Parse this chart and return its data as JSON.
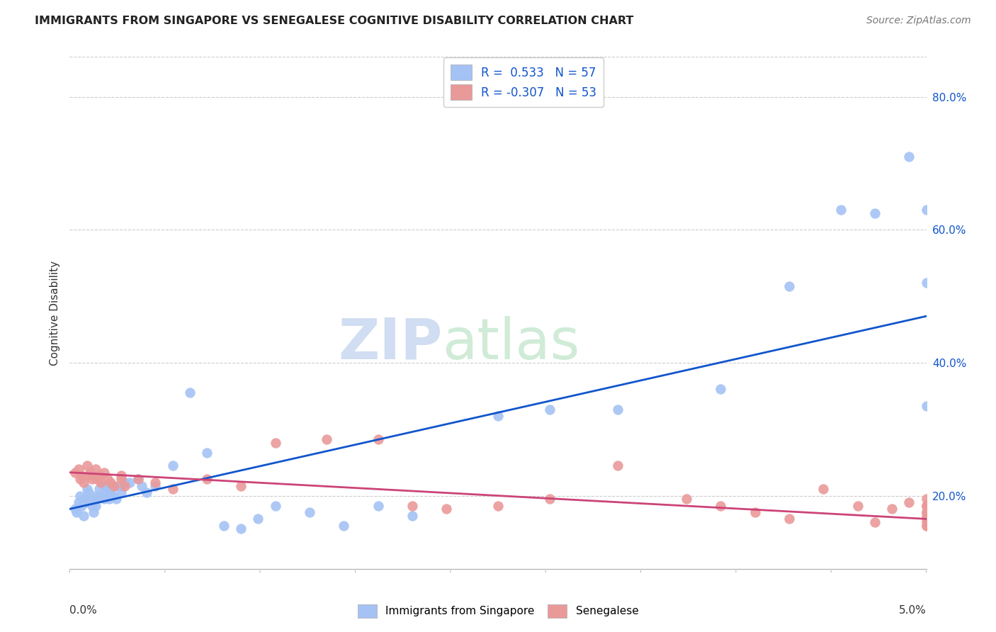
{
  "title": "IMMIGRANTS FROM SINGAPORE VS SENEGALESE COGNITIVE DISABILITY CORRELATION CHART",
  "source": "Source: ZipAtlas.com",
  "ylabel": "Cognitive Disability",
  "ytick_vals": [
    0.2,
    0.4,
    0.6,
    0.8
  ],
  "xmin": 0.0,
  "xmax": 0.05,
  "ymin": 0.09,
  "ymax": 0.86,
  "color_singapore": "#a4c2f4",
  "color_senegalese": "#ea9999",
  "color_line_singapore": "#1155cc",
  "color_line_senegalese": "#cc4477",
  "sg_line_x0": 0.0,
  "sg_line_y0": 0.18,
  "sg_line_x1": 0.05,
  "sg_line_y1": 0.47,
  "sn_line_x0": 0.0,
  "sn_line_y0": 0.235,
  "sn_line_x1": 0.05,
  "sn_line_y1": 0.165,
  "singapore_x": [
    0.0003,
    0.0004,
    0.0005,
    0.0006,
    0.0007,
    0.0008,
    0.0009,
    0.001,
    0.001,
    0.0011,
    0.0012,
    0.0013,
    0.0014,
    0.0015,
    0.0015,
    0.0016,
    0.0017,
    0.0018,
    0.002,
    0.002,
    0.0021,
    0.0022,
    0.0023,
    0.0024,
    0.0025,
    0.0026,
    0.0027,
    0.003,
    0.003,
    0.0032,
    0.0035,
    0.004,
    0.0042,
    0.0045,
    0.005,
    0.006,
    0.007,
    0.008,
    0.009,
    0.01,
    0.011,
    0.012,
    0.014,
    0.016,
    0.018,
    0.02,
    0.025,
    0.028,
    0.032,
    0.038,
    0.042,
    0.045,
    0.047,
    0.049,
    0.05,
    0.05,
    0.05
  ],
  "singapore_y": [
    0.18,
    0.175,
    0.19,
    0.2,
    0.185,
    0.17,
    0.195,
    0.21,
    0.19,
    0.205,
    0.195,
    0.185,
    0.175,
    0.2,
    0.185,
    0.195,
    0.21,
    0.2,
    0.215,
    0.195,
    0.205,
    0.215,
    0.195,
    0.205,
    0.2,
    0.215,
    0.195,
    0.215,
    0.205,
    0.22,
    0.22,
    0.225,
    0.215,
    0.205,
    0.215,
    0.245,
    0.355,
    0.265,
    0.155,
    0.15,
    0.165,
    0.185,
    0.175,
    0.155,
    0.185,
    0.17,
    0.32,
    0.33,
    0.33,
    0.36,
    0.515,
    0.63,
    0.625,
    0.71,
    0.63,
    0.335,
    0.52
  ],
  "senegalese_x": [
    0.0003,
    0.0005,
    0.0006,
    0.0007,
    0.0008,
    0.001,
    0.0011,
    0.0012,
    0.0013,
    0.0015,
    0.0016,
    0.0017,
    0.0018,
    0.002,
    0.0022,
    0.0024,
    0.0026,
    0.003,
    0.003,
    0.0032,
    0.004,
    0.005,
    0.006,
    0.008,
    0.01,
    0.012,
    0.015,
    0.018,
    0.02,
    0.022,
    0.025,
    0.028,
    0.032,
    0.036,
    0.038,
    0.04,
    0.042,
    0.044,
    0.046,
    0.047,
    0.048,
    0.049,
    0.05,
    0.05,
    0.05,
    0.05,
    0.05,
    0.05,
    0.05,
    0.05,
    0.05,
    0.05,
    0.05
  ],
  "senegalese_y": [
    0.235,
    0.24,
    0.225,
    0.23,
    0.22,
    0.245,
    0.23,
    0.235,
    0.225,
    0.24,
    0.225,
    0.23,
    0.22,
    0.235,
    0.225,
    0.22,
    0.215,
    0.225,
    0.23,
    0.215,
    0.225,
    0.22,
    0.21,
    0.225,
    0.215,
    0.28,
    0.285,
    0.285,
    0.185,
    0.18,
    0.185,
    0.195,
    0.245,
    0.195,
    0.185,
    0.175,
    0.165,
    0.21,
    0.185,
    0.16,
    0.18,
    0.19,
    0.175,
    0.185,
    0.195,
    0.165,
    0.155,
    0.175,
    0.185,
    0.17,
    0.185,
    0.155,
    0.16
  ]
}
